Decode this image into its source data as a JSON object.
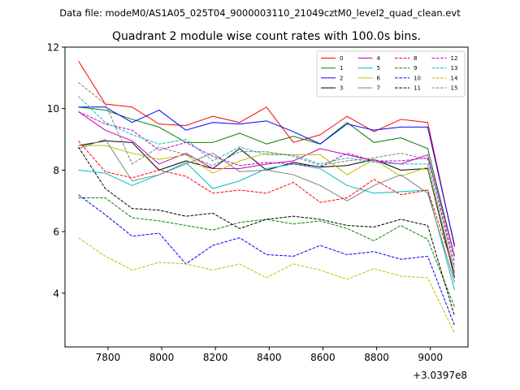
{
  "chart_data": {
    "type": "line",
    "suptitle": "Data file: modeM0/AS1A05_025T04_9000003110_21049cztM0_level2_quad_clean.evt",
    "title": "Quadrant 2 module wise count rates with 100.0s bins.",
    "xlabel": "",
    "ylabel": "",
    "offset_text": "+3.0397e8",
    "xlim": [
      7640,
      9140
    ],
    "ylim": [
      2.25,
      12
    ],
    "xticks": [
      7800,
      8000,
      8200,
      8400,
      8600,
      8800,
      9000
    ],
    "xtick_labels": [
      "7800",
      "8000",
      "8200",
      "8400",
      "8600",
      "8800",
      "9000"
    ],
    "yticks": [
      4,
      6,
      8,
      10,
      12
    ],
    "ytick_labels": [
      "4",
      "6",
      "8",
      "10",
      "12"
    ],
    "grid": false,
    "legend_position": "top-right",
    "x": [
      7690,
      7790,
      7890,
      7990,
      8090,
      8190,
      8290,
      8390,
      8490,
      8590,
      8690,
      8790,
      8890,
      8990,
      9090
    ],
    "series": [
      {
        "name": "0",
        "color": "#ff0000",
        "dash": "solid",
        "values": [
          11.55,
          10.15,
          10.05,
          9.5,
          9.45,
          9.75,
          9.55,
          10.05,
          8.9,
          9.15,
          9.75,
          9.25,
          9.65,
          9.55,
          5.5
        ]
      },
      {
        "name": "1",
        "color": "#008000",
        "dash": "solid",
        "values": [
          10.05,
          9.95,
          9.65,
          9.4,
          8.9,
          8.9,
          9.2,
          8.85,
          9.1,
          8.85,
          9.55,
          8.9,
          9.05,
          8.7,
          5.2
        ]
      },
      {
        "name": "2",
        "color": "#0000ff",
        "dash": "solid",
        "values": [
          10.05,
          10.05,
          9.55,
          9.95,
          9.3,
          9.55,
          9.5,
          9.6,
          9.25,
          8.85,
          9.5,
          9.3,
          9.4,
          9.4,
          5.55
        ]
      },
      {
        "name": "3",
        "color": "#000000",
        "dash": "solid",
        "values": [
          8.8,
          8.95,
          8.9,
          8.0,
          8.3,
          8.05,
          8.7,
          8.0,
          8.25,
          8.1,
          8.15,
          8.35,
          8.0,
          8.05,
          4.5
        ]
      },
      {
        "name": "4",
        "color": "#bf00bf",
        "dash": "solid",
        "values": [
          9.9,
          9.3,
          8.95,
          8.2,
          8.55,
          8.05,
          8.05,
          8.2,
          8.3,
          8.7,
          8.5,
          8.3,
          8.2,
          8.5,
          5.2
        ]
      },
      {
        "name": "5",
        "color": "#00bfbf",
        "dash": "solid",
        "values": [
          8.0,
          7.9,
          7.5,
          7.85,
          8.25,
          7.4,
          7.65,
          8.05,
          8.2,
          8.05,
          7.5,
          7.25,
          7.3,
          7.35,
          4.1
        ]
      },
      {
        "name": "6",
        "color": "#bfbf00",
        "dash": "solid",
        "values": [
          8.8,
          8.8,
          8.55,
          8.35,
          8.5,
          7.9,
          8.3,
          8.55,
          8.5,
          8.5,
          7.85,
          8.35,
          7.8,
          8.1,
          4.65
        ]
      },
      {
        "name": "7",
        "color": "#808080",
        "dash": "solid",
        "values": [
          8.7,
          9.0,
          7.65,
          7.85,
          8.2,
          8.55,
          7.95,
          8.0,
          7.85,
          7.5,
          7.0,
          7.5,
          7.85,
          7.25,
          4.35
        ]
      },
      {
        "name": "8",
        "color": "#ff0000",
        "dash": "dashed",
        "values": [
          8.95,
          7.95,
          7.75,
          8.0,
          7.8,
          7.25,
          7.35,
          7.25,
          7.6,
          6.95,
          7.1,
          7.7,
          7.2,
          7.35,
          4.7
        ]
      },
      {
        "name": "9",
        "color": "#008000",
        "dash": "dashed",
        "values": [
          7.1,
          7.1,
          6.45,
          6.35,
          6.2,
          6.05,
          6.3,
          6.4,
          6.25,
          6.35,
          6.1,
          5.7,
          6.2,
          5.75,
          3.55
        ]
      },
      {
        "name": "10",
        "color": "#0000ff",
        "dash": "dashed",
        "values": [
          7.2,
          6.55,
          5.85,
          5.95,
          4.95,
          5.55,
          5.8,
          5.25,
          5.2,
          5.55,
          5.25,
          5.35,
          5.1,
          5.2,
          2.95
        ]
      },
      {
        "name": "11",
        "color": "#000000",
        "dash": "dashed",
        "values": [
          8.75,
          7.4,
          6.75,
          6.7,
          6.5,
          6.6,
          6.1,
          6.4,
          6.5,
          6.4,
          6.2,
          6.15,
          6.4,
          6.2,
          3.25
        ]
      },
      {
        "name": "12",
        "color": "#bf00bf",
        "dash": "dashed",
        "values": [
          9.9,
          9.5,
          9.3,
          8.65,
          8.9,
          8.45,
          8.15,
          8.25,
          8.2,
          8.1,
          8.55,
          8.3,
          8.3,
          8.4,
          4.85
        ]
      },
      {
        "name": "13",
        "color": "#00bfbf",
        "dash": "dashed",
        "values": [
          10.4,
          9.55,
          9.15,
          8.85,
          9.0,
          8.3,
          8.75,
          8.5,
          8.5,
          8.2,
          8.4,
          8.25,
          8.2,
          8.2,
          4.65
        ]
      },
      {
        "name": "14",
        "color": "#bfbf00",
        "dash": "dashed",
        "values": [
          5.8,
          5.2,
          4.75,
          5.0,
          4.95,
          4.75,
          4.95,
          4.5,
          4.95,
          4.75,
          4.45,
          4.8,
          4.55,
          4.5,
          2.7
        ]
      },
      {
        "name": "15",
        "color": "#808080",
        "dash": "dashed",
        "values": [
          10.85,
          10.15,
          8.2,
          8.75,
          8.5,
          8.15,
          8.6,
          8.6,
          8.45,
          8.15,
          8.3,
          8.4,
          8.55,
          8.35,
          5.05
        ]
      }
    ]
  }
}
